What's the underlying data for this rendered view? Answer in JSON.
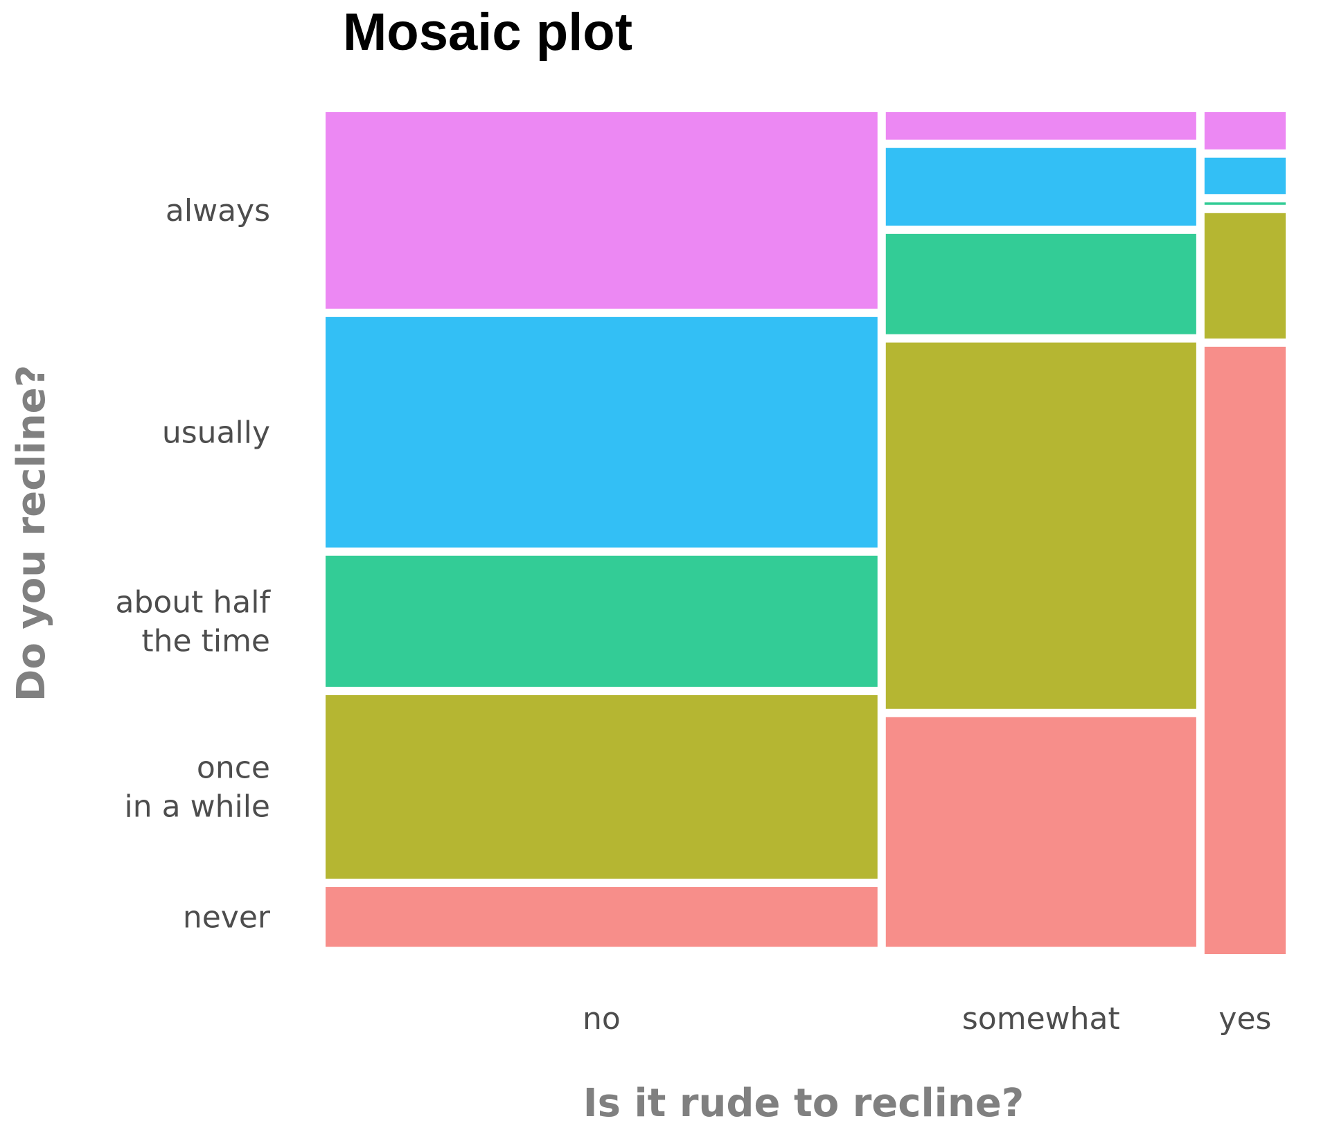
{
  "chart_data": {
    "type": "mosaic",
    "title": "Mosaic plot",
    "xlabel": "Is it rude to recline?",
    "ylabel": "Do you recline?",
    "x_categories": [
      "no",
      "somewhat",
      "yes"
    ],
    "x_proportions": [
      0.585,
      0.329,
      0.086
    ],
    "y_categories": [
      "always",
      "usually",
      "about half the time",
      "once in a while",
      "never"
    ],
    "y_tick_labels": [
      "always",
      "usually",
      "about half\nthe time",
      "once\nin a while",
      "never"
    ],
    "colors": {
      "always": "#EC88F3",
      "usually": "#33BFF5",
      "about half the time": "#33CC96",
      "once in a while": "#B5B632",
      "never": "#F78E8A"
    },
    "series": [
      {
        "name": "always",
        "values": [
          0.243,
          0.034,
          0.046
        ]
      },
      {
        "name": "usually",
        "values": [
          0.285,
          0.096,
          0.045
        ]
      },
      {
        "name": "about half the time",
        "values": [
          0.162,
          0.124,
          0.003
        ]
      },
      {
        "name": "once in a while",
        "values": [
          0.227,
          0.453,
          0.155
        ]
      },
      {
        "name": "never",
        "values": [
          0.074,
          0.284,
          0.751
        ]
      }
    ]
  }
}
